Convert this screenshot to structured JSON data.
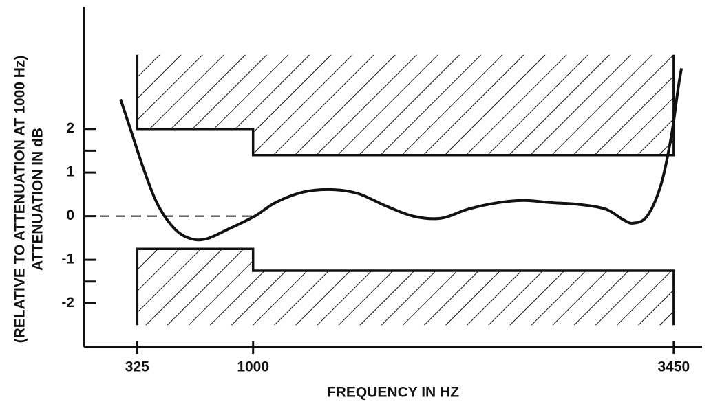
{
  "chart_data": {
    "type": "line",
    "xlabel": "FREQUENCY IN HZ",
    "ylabel": [
      "ATTENUATION IN dB",
      "(RELATIVE TO ATTENUATION AT 1000 Hz)"
    ],
    "xlim": [
      15,
      3615
    ],
    "ylim": [
      -3,
      4.8
    ],
    "xticks": [
      325,
      1000,
      3450
    ],
    "yticks": [
      2,
      1,
      0,
      -1,
      -2
    ],
    "minor_yticks": [
      1.5,
      -1.5
    ],
    "color": "#111111",
    "x": [
      228,
      288,
      368,
      448,
      548,
      640,
      729,
      849,
      1010,
      1130,
      1290,
      1450,
      1610,
      1770,
      1932,
      2092,
      2252,
      2413,
      2573,
      2733,
      2894,
      3054,
      3155,
      3215,
      3295,
      3375,
      3435,
      3475,
      3495
    ],
    "values": [
      2.68,
      1.97,
      1.02,
      0.24,
      -0.31,
      -0.52,
      -0.52,
      -0.31,
      0,
      0.31,
      0.55,
      0.61,
      0.52,
      0.24,
      0,
      -0.05,
      0.16,
      0.3,
      0.36,
      0.31,
      0.27,
      0.16,
      -0.08,
      -0.16,
      0,
      0.71,
      1.81,
      2.91,
      3.39
    ],
    "reference_line": {
      "y": 0,
      "x": [
        15,
        1000
      ]
    },
    "upper_mask": {
      "limit": 3.7,
      "segments": [
        {
          "x0": 325,
          "x1": 1000,
          "y": 2
        },
        {
          "x0": 1000,
          "x1": 3450,
          "y": 1.4
        }
      ]
    },
    "lower_mask": {
      "limit": -2.5,
      "segments": [
        {
          "x0": 325,
          "x1": 1000,
          "y": -0.75
        },
        {
          "x0": 1000,
          "x1": 3450,
          "y": -1.25
        }
      ]
    }
  }
}
